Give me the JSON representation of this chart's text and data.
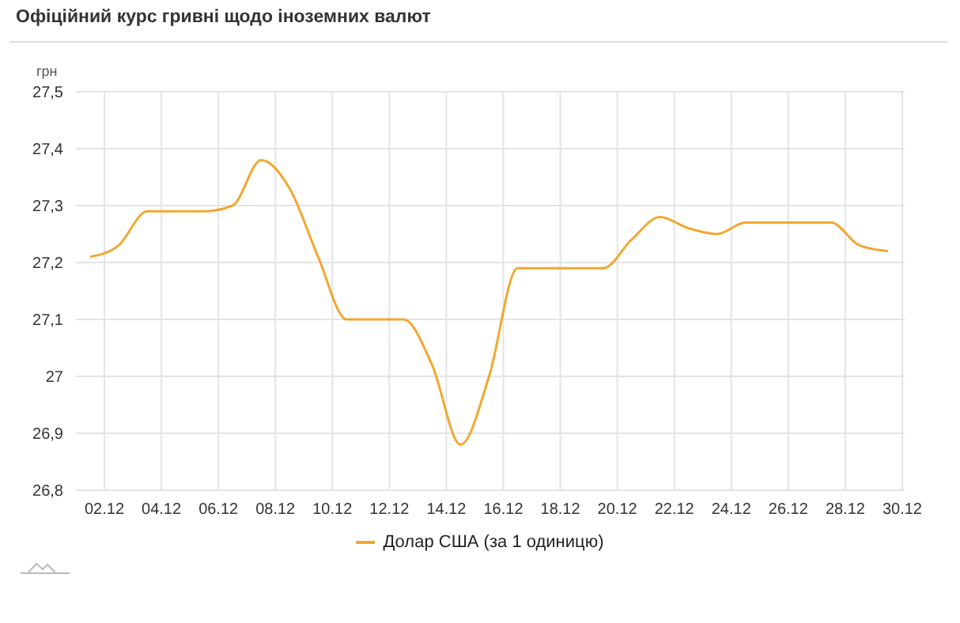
{
  "chart_data": {
    "type": "line",
    "title": "Офіційний курс гривні щодо іноземних валют",
    "ylabel": "грн",
    "series": [
      {
        "name": "Долар США (за 1 одиницю)",
        "color": "#f0a830",
        "x": [
          "--12-01T12:00",
          "--12-02T12:00",
          "--12-03T12:00",
          "--12-04T12:00",
          "--12-05T12:00",
          "--12-06T12:00",
          "--12-07T12:00",
          "--12-08T12:00",
          "--12-09T12:00",
          "--12-10T12:00",
          "--12-11T12:00",
          "--12-12T12:00",
          "--12-13T12:00",
          "--12-14T12:00",
          "--12-15T12:00",
          "--12-16T12:00",
          "--12-17T12:00",
          "--12-18T12:00",
          "--12-19T12:00",
          "--12-20T12:00",
          "--12-21T12:00",
          "--12-22T12:00",
          "--12-23T12:00",
          "--12-24T12:00",
          "--12-25T12:00",
          "--12-26T12:00",
          "--12-27T12:00",
          "--12-28T12:00",
          "--12-29T12:00"
        ],
        "values": [
          27.21,
          27.23,
          27.29,
          27.29,
          27.29,
          27.3,
          27.38,
          27.33,
          27.21,
          27.1,
          27.1,
          27.1,
          27.02,
          26.88,
          27.0,
          27.19,
          27.19,
          27.19,
          27.19,
          27.24,
          27.28,
          27.26,
          27.25,
          27.27,
          27.27,
          27.27,
          27.27,
          27.23,
          27.22
        ]
      }
    ],
    "xlim": [
      "--12-01",
      "--12-30T02:00"
    ],
    "xticks": [
      {
        "value": "--12-02",
        "label": "02.12"
      },
      {
        "value": "--12-04",
        "label": "04.12"
      },
      {
        "value": "--12-06",
        "label": "06.12"
      },
      {
        "value": "--12-08",
        "label": "08.12"
      },
      {
        "value": "--12-10",
        "label": "10.12"
      },
      {
        "value": "--12-12",
        "label": "12.12"
      },
      {
        "value": "--12-14",
        "label": "14.12"
      },
      {
        "value": "--12-16",
        "label": "16.12"
      },
      {
        "value": "--12-18",
        "label": "18.12"
      },
      {
        "value": "--12-20",
        "label": "20.12"
      },
      {
        "value": "--12-22",
        "label": "22.12"
      },
      {
        "value": "--12-24",
        "label": "24.12"
      },
      {
        "value": "--12-26",
        "label": "26.12"
      },
      {
        "value": "--12-28",
        "label": "28.12"
      },
      {
        "value": "--12-30",
        "label": "30.12"
      }
    ],
    "ylim": [
      26.8,
      27.5
    ],
    "yticks": [
      {
        "value": 26.8,
        "label": "26,8"
      },
      {
        "value": 26.9,
        "label": "26,9"
      },
      27,
      {
        "value": 27.1,
        "label": "27,1"
      },
      {
        "value": 27.2,
        "label": "27,2"
      },
      {
        "value": 27.3,
        "label": "27,3"
      },
      {
        "value": 27.4,
        "label": "27,4"
      },
      {
        "value": 27.5,
        "label": "27,5"
      }
    ],
    "grid": true,
    "legend": "bottom",
    "marker": "none",
    "line_style": "solid"
  }
}
